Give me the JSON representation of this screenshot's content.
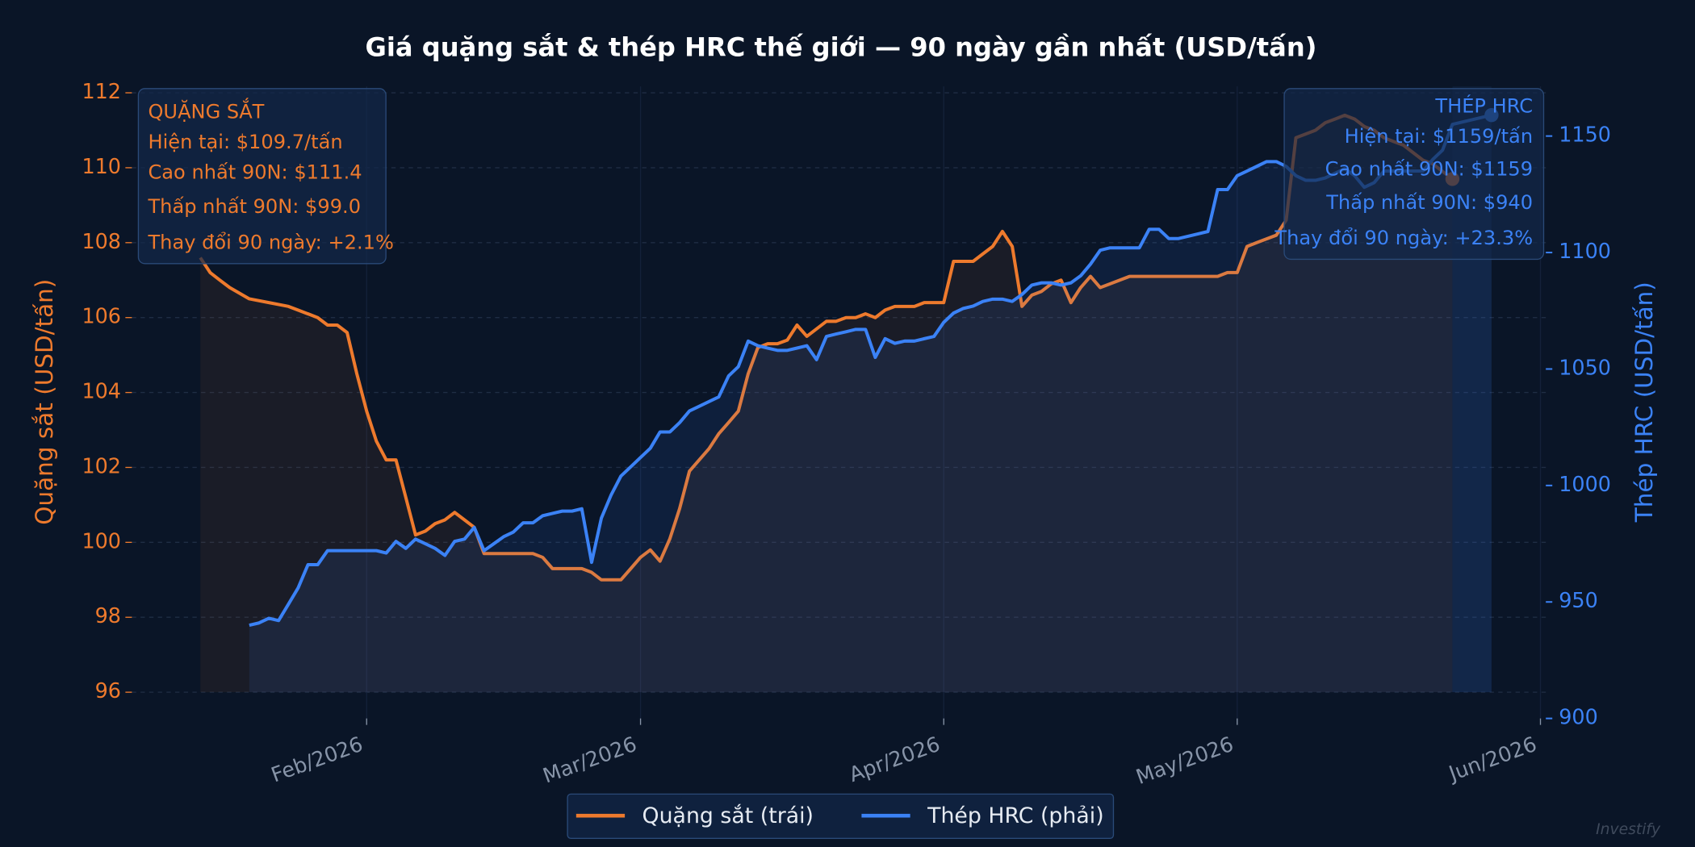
{
  "chart_data": {
    "type": "line",
    "title": "Giá quặng sắt & thép HRC thế giới — 90 ngày gần nhất (USD/tấn)",
    "y_label": "Quặng sắt (USD/tấn)",
    "y2_label": "Thép HRC (USD/tấn)",
    "xlim": [
      8,
      152.55
    ],
    "xticks": [
      {
        "value": 32,
        "label": "Feb/2026"
      },
      {
        "value": 60,
        "label": "Mar/2026"
      },
      {
        "value": 91,
        "label": "Apr/2026"
      },
      {
        "value": 121,
        "label": "May/2026"
      },
      {
        "value": 152,
        "label": "Jun/2026"
      }
    ],
    "ylim": [
      95.3,
      112.17
    ],
    "yticks": [
      96,
      98,
      100,
      102,
      104,
      106,
      108,
      110,
      112
    ],
    "y2lim": [
      900,
      1171.3
    ],
    "y2ticks": [
      900,
      950,
      1000,
      1050,
      1100,
      1150
    ],
    "grid": true,
    "legend": "below",
    "series": [
      {
        "name": "Quặng sắt (trái)",
        "color": "#ee7a2d",
        "axis": "y",
        "x": [
          15,
          16,
          17,
          18,
          20,
          22,
          24,
          26,
          27,
          28,
          29,
          30,
          31,
          32,
          33,
          34,
          35,
          36,
          37,
          38,
          39,
          40,
          41,
          42,
          43,
          44,
          45,
          46,
          47,
          48,
          49,
          50,
          51,
          52,
          53,
          54,
          55,
          56,
          57,
          58,
          59,
          60,
          61,
          62,
          63,
          64,
          65,
          66,
          67,
          68,
          69,
          70,
          71,
          72,
          73,
          74,
          75,
          76,
          77,
          78,
          79,
          80,
          81,
          82,
          83,
          84,
          85,
          86,
          87,
          88,
          89,
          90,
          91,
          92,
          93,
          94,
          95,
          96,
          97,
          98,
          99,
          100,
          101,
          102,
          103,
          104,
          105,
          106,
          107,
          108,
          109,
          110,
          111,
          112,
          113,
          114,
          115,
          116,
          117,
          118,
          119,
          120,
          121,
          122,
          123,
          124,
          125,
          126,
          127,
          128,
          129,
          130,
          131,
          132,
          133,
          134,
          135,
          136,
          137,
          138,
          139,
          140,
          141,
          142,
          143
        ],
        "values": [
          107.6,
          107.2,
          107.0,
          106.8,
          106.5,
          106.4,
          106.3,
          106.1,
          106.0,
          105.8,
          105.8,
          105.6,
          104.5,
          103.5,
          102.7,
          102.2,
          102.2,
          101.2,
          100.2,
          100.3,
          100.5,
          100.6,
          100.8,
          100.6,
          100.4,
          99.7,
          99.7,
          99.7,
          99.7,
          99.7,
          99.7,
          99.6,
          99.3,
          99.3,
          99.3,
          99.3,
          99.2,
          99.0,
          99.0,
          99.0,
          99.3,
          99.6,
          99.8,
          99.5,
          100.1,
          100.9,
          101.9,
          102.2,
          102.5,
          102.9,
          103.2,
          103.5,
          104.5,
          105.2,
          105.3,
          105.3,
          105.4,
          105.8,
          105.5,
          105.7,
          105.9,
          105.9,
          106.0,
          106.0,
          106.1,
          106.0,
          106.2,
          106.3,
          106.3,
          106.3,
          106.4,
          106.4,
          106.4,
          107.5,
          107.5,
          107.5,
          107.7,
          107.9,
          108.3,
          107.9,
          106.3,
          106.6,
          106.7,
          106.9,
          107.0,
          106.4,
          106.8,
          107.1,
          106.8,
          106.9,
          107.0,
          107.1,
          107.1,
          107.1,
          107.1,
          107.1,
          107.1,
          107.1,
          107.1,
          107.1,
          107.1,
          107.2,
          107.2,
          107.9,
          108.0,
          108.1,
          108.2,
          108.6,
          110.8,
          110.9,
          111.0,
          111.2,
          111.3,
          111.4,
          111.3,
          111.1,
          111.0,
          110.8,
          110.7,
          110.6,
          110.4,
          110.2,
          110.1,
          109.9,
          109.7
        ]
      },
      {
        "name": "Thép HRC (phải)",
        "color": "#3b82f6",
        "axis": "y2",
        "x": [
          20,
          21,
          22,
          23,
          24,
          25,
          26,
          27,
          28,
          29,
          30,
          31,
          32,
          33,
          34,
          35,
          36,
          37,
          38,
          39,
          40,
          41,
          42,
          43,
          44,
          45,
          46,
          47,
          48,
          49,
          50,
          51,
          52,
          53,
          54,
          55,
          56,
          57,
          58,
          59,
          60,
          61,
          62,
          63,
          64,
          65,
          66,
          67,
          68,
          69,
          70,
          71,
          72,
          73,
          74,
          75,
          76,
          77,
          78,
          79,
          80,
          81,
          82,
          83,
          84,
          85,
          86,
          87,
          88,
          89,
          90,
          91,
          92,
          93,
          94,
          95,
          96,
          97,
          98,
          99,
          100,
          101,
          102,
          103,
          104,
          105,
          106,
          107,
          108,
          109,
          110,
          111,
          112,
          113,
          114,
          115,
          116,
          117,
          118,
          119,
          120,
          121,
          122,
          123,
          124,
          125,
          126,
          127,
          128,
          129,
          130,
          131,
          132,
          133,
          134,
          135,
          136,
          137,
          138,
          139,
          140,
          141,
          142,
          143,
          144,
          145,
          146,
          147
        ],
        "values": [
          940,
          941,
          943,
          942,
          949,
          956,
          966,
          966,
          972,
          972,
          972,
          972,
          972,
          972,
          971,
          976,
          973,
          977,
          975,
          973,
          970,
          976,
          977,
          982,
          972,
          975,
          978,
          980,
          984,
          984,
          987,
          988,
          989,
          989,
          990,
          967,
          986,
          996,
          1004,
          1008,
          1012,
          1016,
          1023,
          1023,
          1027,
          1032,
          1034,
          1036,
          1038,
          1047,
          1051,
          1062,
          1060,
          1059,
          1058,
          1058,
          1059,
          1060,
          1054,
          1064,
          1065,
          1066,
          1067,
          1067,
          1055,
          1063,
          1061,
          1062,
          1062,
          1063,
          1064,
          1070,
          1074,
          1076,
          1077,
          1079,
          1080,
          1080,
          1079,
          1082,
          1086,
          1087,
          1087,
          1086,
          1087,
          1090,
          1095,
          1101,
          1102,
          1102,
          1102,
          1102,
          1110,
          1110,
          1106,
          1106,
          1107,
          1108,
          1109,
          1127,
          1127,
          1133,
          1135,
          1137,
          1139,
          1139,
          1137,
          1133,
          1131,
          1131,
          1132,
          1134,
          1136,
          1133,
          1128,
          1130,
          1135,
          1135,
          1135,
          1135,
          1135,
          1140,
          1144,
          1155,
          1156,
          1157,
          1158,
          1159
        ]
      }
    ],
    "annotations": [
      {
        "lines": [
          "QUẶNG SẮT",
          "Hiện tại: $109.7/tấn",
          "Cao nhất 90N: $111.4",
          "Thấp nhất 90N: $99.0",
          "Thay đổi 90 ngày: +2.1%"
        ]
      },
      {
        "lines": [
          "THÉP HRC",
          "Hiện tại: $1159/tấn",
          "Cao nhất 90N: $1159",
          "Thấp nhất 90N: $940",
          "Thay đổi 90 ngày: +23.3%"
        ]
      }
    ],
    "watermark": "Investify"
  }
}
